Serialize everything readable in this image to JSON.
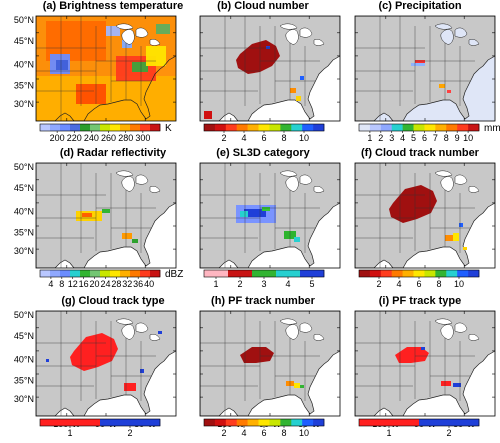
{
  "panels": [
    {
      "title": "(a) Brightness temperature",
      "colorbar": {
        "ticks": [
          "200",
          "220",
          "240",
          "260",
          "280",
          "300"
        ],
        "unit": "K"
      }
    },
    {
      "title": "(b) Cloud number",
      "colorbar": {
        "ticks": [
          "2",
          "4",
          "6",
          "8",
          "10"
        ],
        "unit": ""
      }
    },
    {
      "title": "(c) Precipitation",
      "colorbar": {
        "ticks": [
          "1",
          "2",
          "3",
          "4",
          "5",
          "6",
          "7",
          "8",
          "9",
          "10"
        ],
        "unit": "mm"
      }
    },
    {
      "title": "(d) Radar reflectivity",
      "colorbar": {
        "ticks": [
          "4",
          "8",
          "12",
          "16",
          "20",
          "24",
          "28",
          "32",
          "36",
          "40"
        ],
        "unit": "dBZ"
      }
    },
    {
      "title": "(e) SL3D category",
      "colorbar": {
        "ticks": [
          "1",
          "2",
          "3",
          "4",
          "5"
        ],
        "unit": ""
      }
    },
    {
      "title": "(f) Cloud track number",
      "colorbar": {
        "ticks": [
          "2",
          "4",
          "6",
          "8",
          "10"
        ],
        "unit": ""
      }
    },
    {
      "title": "(g) Cloud track type",
      "colorbar": {
        "ticks": [
          "1",
          "2"
        ],
        "unit": ""
      }
    },
    {
      "title": "(h) PF track number",
      "colorbar": {
        "ticks": [
          "2",
          "4",
          "6",
          "8",
          "10"
        ],
        "unit": ""
      }
    },
    {
      "title": "(i) PF track type",
      "colorbar": {
        "ticks": [
          "1",
          "2"
        ],
        "unit": ""
      }
    }
  ],
  "lat_labels": [
    "50°N",
    "45°N",
    "40°N",
    "35°N",
    "30°N"
  ],
  "lon_labels": [
    "100°W",
    "90°W",
    "80°W"
  ],
  "colors": {
    "land": "#c8c8c8",
    "ocean_white": "#ffffff",
    "ocean_light": "#dfe6f7",
    "track_red": "#a01010",
    "type_red": "#ff2020",
    "type_blue": "#1f3fd8"
  }
}
